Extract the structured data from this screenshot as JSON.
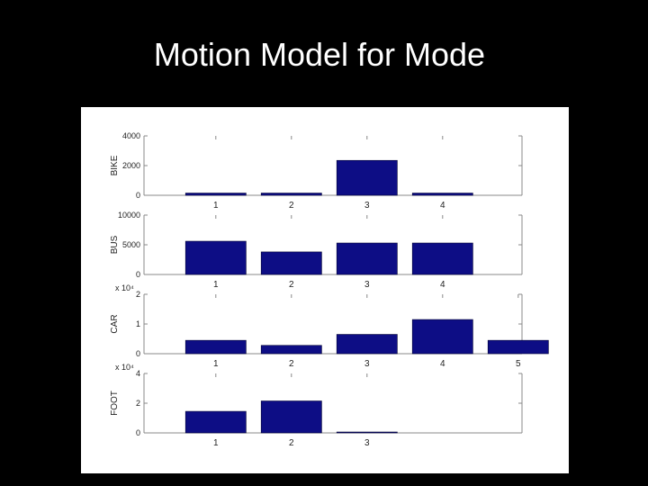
{
  "slide": {
    "title": "Motion Model for Mode"
  },
  "colors": {
    "bar": "#0d0d85",
    "axis": "#888888"
  },
  "chart_data": [
    {
      "type": "bar",
      "ylabel": "BIKE",
      "multiplier": "",
      "categories": [
        "1",
        "2",
        "3",
        "4"
      ],
      "x": [
        1,
        2,
        3,
        4
      ],
      "values": [
        150,
        150,
        2350,
        150
      ],
      "xlim": [
        0.05,
        5.05
      ],
      "ylim": [
        0,
        4000
      ],
      "yticks": [
        "0",
        "2000",
        "4000"
      ],
      "ytick_values": [
        0,
        2000,
        4000
      ]
    },
    {
      "type": "bar",
      "ylabel": "BUS",
      "multiplier": "",
      "categories": [
        "1",
        "2",
        "3",
        "4"
      ],
      "x": [
        1,
        2,
        3,
        4
      ],
      "values": [
        5600,
        3800,
        5300,
        5300
      ],
      "xlim": [
        0.05,
        5.05
      ],
      "ylim": [
        0,
        10000
      ],
      "yticks": [
        "0",
        "5000",
        "10000"
      ],
      "ytick_values": [
        0,
        5000,
        10000
      ]
    },
    {
      "type": "bar",
      "ylabel": "CAR",
      "multiplier": "x 10⁴",
      "categories": [
        "1",
        "2",
        "3",
        "4",
        "5"
      ],
      "x": [
        1,
        2,
        3,
        4,
        5
      ],
      "values": [
        0.45,
        0.28,
        0.65,
        1.15,
        0.45
      ],
      "xlim": [
        0.05,
        5.05
      ],
      "ylim": [
        0,
        2
      ],
      "yticks": [
        "0",
        "1",
        "2"
      ],
      "ytick_values": [
        0,
        1,
        2
      ]
    },
    {
      "type": "bar",
      "ylabel": "FOOT",
      "multiplier": "x 10⁴",
      "categories": [
        "1",
        "2",
        "3"
      ],
      "x": [
        1,
        2,
        3
      ],
      "values": [
        1.45,
        2.15,
        0.02
      ],
      "xlim": [
        0.05,
        5.05
      ],
      "ylim": [
        0,
        4
      ],
      "yticks": [
        "0",
        "2",
        "4"
      ],
      "ytick_values": [
        0,
        2,
        4
      ]
    }
  ]
}
